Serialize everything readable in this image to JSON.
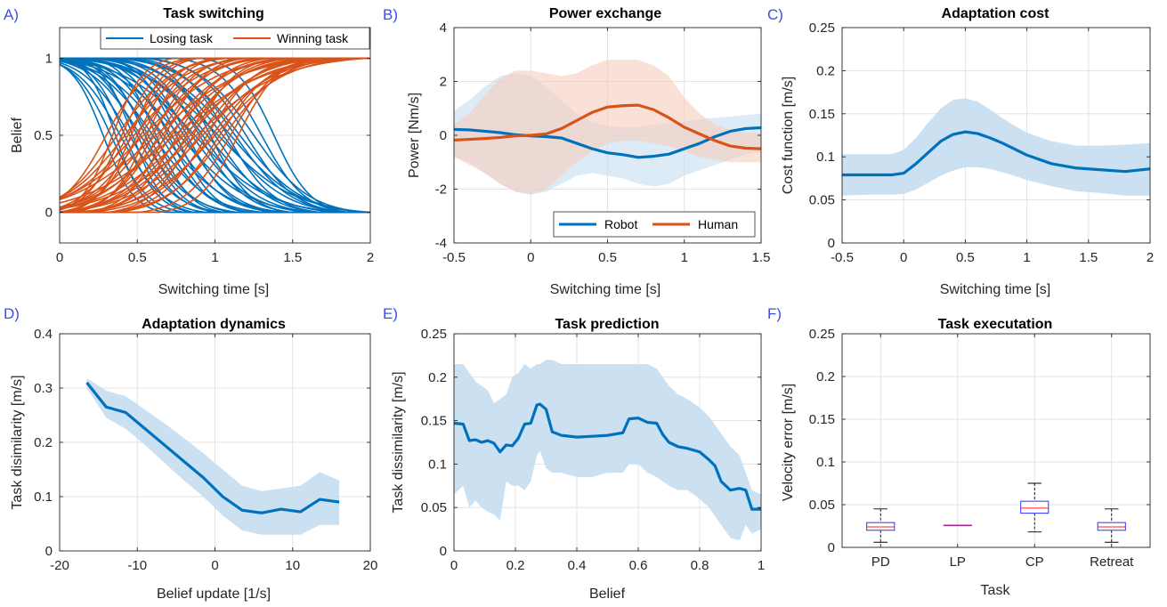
{
  "colors": {
    "blue": "#0072BD",
    "orange": "#D95319",
    "band_blue": "#c5ddf0",
    "band_orange": "#f6cdbd",
    "box_edge": "#3030ff",
    "median": "#ff2020",
    "label": "#3b4fe0"
  },
  "chart_data": [
    {
      "panel_label": "A)",
      "type": "line",
      "title": "Task switching",
      "xlabel": "Switching time [s]",
      "ylabel": "Belief",
      "xlim": [
        0,
        2
      ],
      "ylim": [
        -0.2,
        1.2
      ],
      "xticks": [
        0,
        0.5,
        1,
        1.5,
        2
      ],
      "xtick_labels": [
        "0",
        "0.5",
        "1",
        "1.5",
        "2"
      ],
      "yticks": [
        0,
        0.5,
        1
      ],
      "ytick_labels": [
        "0",
        "0.5",
        "1"
      ],
      "grid": true,
      "legend_position": "top-right",
      "series": [
        {
          "name": "Losing task",
          "color": "#0072BD",
          "kind": "sigmoid_down",
          "centers": [
            0.28,
            0.33,
            0.36,
            0.39,
            0.42,
            0.45,
            0.47,
            0.5,
            0.52,
            0.55,
            0.57,
            0.6,
            0.62,
            0.65,
            0.67,
            0.7,
            0.72,
            0.75,
            0.77,
            0.8,
            0.82,
            0.85,
            0.87,
            0.9,
            0.92,
            0.95,
            0.97,
            1.0,
            1.02,
            1.05,
            1.08,
            1.1,
            1.13,
            1.16,
            1.2,
            1.25,
            1.3,
            1.38
          ],
          "widths": [
            0.1,
            0.12,
            0.09,
            0.14,
            0.11,
            0.15,
            0.1,
            0.13,
            0.16,
            0.12,
            0.14,
            0.18,
            0.11,
            0.15,
            0.2,
            0.13,
            0.17,
            0.12,
            0.22,
            0.16,
            0.14,
            0.19,
            0.24,
            0.15,
            0.18,
            0.21,
            0.13,
            0.17,
            0.25,
            0.2,
            0.15,
            0.22,
            0.18,
            0.2,
            0.16,
            0.18,
            0.14,
            0.12
          ]
        },
        {
          "name": "Winning task",
          "color": "#D95319",
          "kind": "sigmoid_up",
          "centers": [
            0.3,
            0.34,
            0.37,
            0.4,
            0.42,
            0.44,
            0.46,
            0.48,
            0.5,
            0.52,
            0.54,
            0.56,
            0.58,
            0.6,
            0.62,
            0.64,
            0.66,
            0.68,
            0.7,
            0.72,
            0.74,
            0.76,
            0.78,
            0.8,
            0.82,
            0.84,
            0.86,
            0.88,
            0.9,
            0.92,
            0.95,
            0.98,
            1.0,
            1.03,
            1.06,
            1.1,
            1.15
          ],
          "widths": [
            0.14,
            0.1,
            0.18,
            0.12,
            0.2,
            0.15,
            0.11,
            0.22,
            0.13,
            0.17,
            0.25,
            0.12,
            0.19,
            0.14,
            0.28,
            0.16,
            0.21,
            0.13,
            0.24,
            0.18,
            0.3,
            0.15,
            0.2,
            0.26,
            0.17,
            0.22,
            0.14,
            0.28,
            0.19,
            0.24,
            0.16,
            0.2,
            0.23,
            0.17,
            0.19,
            0.15,
            0.13
          ]
        }
      ]
    },
    {
      "panel_label": "B)",
      "type": "area",
      "title": "Power exchange",
      "xlabel": "Switching time [s]",
      "ylabel": "Power [Nm/s]",
      "xlim": [
        -0.5,
        1.5
      ],
      "ylim": [
        -4,
        4
      ],
      "xticks": [
        -0.5,
        0,
        0.5,
        1,
        1.5
      ],
      "xtick_labels": [
        "-0.5",
        "0",
        "0.5",
        "1",
        "1.5"
      ],
      "yticks": [
        -4,
        -2,
        0,
        2,
        4
      ],
      "ytick_labels": [
        "-4",
        "-2",
        "0",
        "2",
        "4"
      ],
      "grid": true,
      "legend_position": "bottom-right",
      "series": [
        {
          "name": "Robot",
          "color": "#0072BD",
          "x": [
            -0.5,
            -0.4,
            -0.3,
            -0.2,
            -0.1,
            0.0,
            0.1,
            0.2,
            0.3,
            0.4,
            0.5,
            0.6,
            0.7,
            0.8,
            0.9,
            1.0,
            1.1,
            1.2,
            1.3,
            1.4,
            1.5
          ],
          "y": [
            0.22,
            0.2,
            0.15,
            0.1,
            0.02,
            -0.02,
            -0.05,
            -0.1,
            -0.3,
            -0.5,
            -0.65,
            -0.72,
            -0.82,
            -0.78,
            -0.7,
            -0.5,
            -0.3,
            -0.05,
            0.15,
            0.25,
            0.28
          ],
          "upper": [
            0.9,
            1.3,
            1.8,
            2.2,
            2.3,
            2.2,
            1.8,
            1.3,
            0.8,
            0.5,
            0.35,
            0.3,
            0.3,
            0.4,
            0.45,
            0.5,
            0.6,
            0.65,
            0.7,
            0.75,
            0.8
          ],
          "lower": [
            -0.8,
            -1.0,
            -1.4,
            -1.8,
            -2.1,
            -2.2,
            -2.1,
            -1.8,
            -1.5,
            -1.4,
            -1.5,
            -1.6,
            -1.8,
            -1.9,
            -1.8,
            -1.5,
            -1.3,
            -1.1,
            -0.9,
            -0.7,
            -0.6
          ]
        },
        {
          "name": "Human",
          "color": "#D95319",
          "x": [
            -0.5,
            -0.4,
            -0.3,
            -0.2,
            -0.1,
            0.0,
            0.1,
            0.2,
            0.3,
            0.4,
            0.5,
            0.6,
            0.7,
            0.8,
            0.9,
            1.0,
            1.1,
            1.2,
            1.3,
            1.4,
            1.5
          ],
          "y": [
            -0.18,
            -0.15,
            -0.12,
            -0.08,
            -0.02,
            0.0,
            0.05,
            0.25,
            0.55,
            0.85,
            1.05,
            1.1,
            1.12,
            0.95,
            0.65,
            0.3,
            0.05,
            -0.2,
            -0.4,
            -0.48,
            -0.5
          ],
          "upper": [
            0.4,
            0.8,
            1.5,
            2.1,
            2.4,
            2.4,
            2.3,
            2.2,
            2.3,
            2.6,
            2.8,
            2.8,
            2.8,
            2.6,
            2.2,
            1.4,
            0.8,
            0.4,
            0.2,
            0.1,
            0.1
          ],
          "lower": [
            -0.8,
            -1.1,
            -1.4,
            -1.8,
            -2.1,
            -2.2,
            -2.0,
            -1.5,
            -1.0,
            -0.6,
            -0.3,
            -0.2,
            -0.2,
            -0.3,
            -0.4,
            -0.6,
            -0.8,
            -0.9,
            -1.0,
            -1.0,
            -1.0
          ]
        }
      ]
    },
    {
      "panel_label": "C)",
      "type": "area",
      "title": "Adaptation cost",
      "xlabel": "Switching time [s]",
      "ylabel": "Cost function [m/s]",
      "xlim": [
        -0.5,
        2
      ],
      "ylim": [
        0,
        0.25
      ],
      "xticks": [
        -0.5,
        0,
        0.5,
        1,
        1.5,
        2
      ],
      "xtick_labels": [
        "-0.5",
        "0",
        "0.5",
        "1",
        "1.5",
        "2"
      ],
      "yticks": [
        0,
        0.05,
        0.1,
        0.15,
        0.2,
        0.25
      ],
      "ytick_labels": [
        "0",
        "0.05",
        "0.1",
        "0.15",
        "0.2",
        "0.25"
      ],
      "grid": true,
      "series": [
        {
          "color": "#0072BD",
          "x": [
            -0.5,
            -0.3,
            -0.1,
            0.0,
            0.1,
            0.2,
            0.3,
            0.4,
            0.5,
            0.6,
            0.7,
            0.8,
            0.9,
            1.0,
            1.2,
            1.4,
            1.6,
            1.8,
            2.0
          ],
          "y": [
            0.079,
            0.079,
            0.079,
            0.081,
            0.092,
            0.105,
            0.118,
            0.126,
            0.129,
            0.127,
            0.122,
            0.116,
            0.109,
            0.102,
            0.092,
            0.087,
            0.085,
            0.083,
            0.086
          ],
          "upper": [
            0.103,
            0.103,
            0.103,
            0.108,
            0.122,
            0.14,
            0.156,
            0.166,
            0.168,
            0.164,
            0.155,
            0.145,
            0.136,
            0.128,
            0.118,
            0.113,
            0.113,
            0.114,
            0.116
          ],
          "lower": [
            0.055,
            0.056,
            0.056,
            0.057,
            0.062,
            0.07,
            0.078,
            0.084,
            0.088,
            0.088,
            0.086,
            0.082,
            0.078,
            0.073,
            0.066,
            0.06,
            0.058,
            0.055,
            0.055
          ]
        }
      ]
    },
    {
      "panel_label": "D)",
      "type": "area",
      "title": "Adaptation dynamics",
      "xlabel": "Belief update [1/s]",
      "ylabel": "Task disimilarity [m/s]",
      "xlim": [
        -20,
        20
      ],
      "ylim": [
        0,
        0.4
      ],
      "xticks": [
        -20,
        -10,
        0,
        10,
        20
      ],
      "xtick_labels": [
        "-20",
        "-10",
        "0",
        "10",
        "20"
      ],
      "yticks": [
        0,
        0.1,
        0.2,
        0.3,
        0.4
      ],
      "ytick_labels": [
        "0",
        "0.1",
        "0.2",
        "0.3",
        "0.4"
      ],
      "grid": true,
      "series": [
        {
          "color": "#0072BD",
          "x": [
            -16.5,
            -14,
            -11.5,
            -9,
            -6.5,
            -4,
            -1.5,
            1,
            3.5,
            6,
            8.5,
            11,
            13.5,
            16
          ],
          "y": [
            0.31,
            0.265,
            0.255,
            0.225,
            0.195,
            0.165,
            0.135,
            0.1,
            0.075,
            0.07,
            0.077,
            0.072,
            0.095,
            0.09
          ],
          "upper": [
            0.318,
            0.295,
            0.285,
            0.26,
            0.235,
            0.208,
            0.18,
            0.15,
            0.12,
            0.11,
            0.115,
            0.12,
            0.145,
            0.13
          ],
          "lower": [
            0.3,
            0.245,
            0.225,
            0.195,
            0.162,
            0.13,
            0.1,
            0.065,
            0.038,
            0.03,
            0.03,
            0.03,
            0.048,
            0.048
          ]
        }
      ]
    },
    {
      "panel_label": "E)",
      "type": "area",
      "title": "Task prediction",
      "xlabel": "Belief",
      "ylabel": "Task dissimilarity [m/s]",
      "xlim": [
        0,
        1
      ],
      "ylim": [
        0,
        0.25
      ],
      "xticks": [
        0,
        0.2,
        0.4,
        0.6,
        0.8,
        1
      ],
      "xtick_labels": [
        "0",
        "0.2",
        "0.4",
        "0.6",
        "0.8",
        "1"
      ],
      "yticks": [
        0,
        0.05,
        0.1,
        0.15,
        0.2,
        0.25
      ],
      "ytick_labels": [
        "0",
        "0.05",
        "0.1",
        "0.15",
        "0.2",
        "0.25"
      ],
      "grid": true,
      "series": [
        {
          "color": "#0072BD",
          "x": [
            0,
            0.03,
            0.05,
            0.07,
            0.09,
            0.11,
            0.13,
            0.15,
            0.17,
            0.19,
            0.21,
            0.23,
            0.25,
            0.27,
            0.28,
            0.3,
            0.32,
            0.35,
            0.4,
            0.45,
            0.5,
            0.55,
            0.57,
            0.6,
            0.63,
            0.66,
            0.68,
            0.7,
            0.73,
            0.76,
            0.8,
            0.83,
            0.85,
            0.87,
            0.9,
            0.93,
            0.95,
            0.97,
            1.0
          ],
          "y": [
            0.147,
            0.146,
            0.127,
            0.128,
            0.125,
            0.127,
            0.124,
            0.114,
            0.122,
            0.121,
            0.13,
            0.146,
            0.147,
            0.168,
            0.169,
            0.163,
            0.137,
            0.133,
            0.131,
            0.132,
            0.133,
            0.136,
            0.152,
            0.153,
            0.148,
            0.147,
            0.134,
            0.125,
            0.12,
            0.118,
            0.114,
            0.105,
            0.098,
            0.08,
            0.07,
            0.072,
            0.07,
            0.048,
            0.048
          ],
          "upper": [
            0.215,
            0.215,
            0.205,
            0.195,
            0.19,
            0.185,
            0.17,
            0.175,
            0.18,
            0.2,
            0.205,
            0.215,
            0.21,
            0.215,
            0.215,
            0.22,
            0.22,
            0.215,
            0.215,
            0.215,
            0.215,
            0.215,
            0.215,
            0.215,
            0.215,
            0.21,
            0.2,
            0.19,
            0.18,
            0.175,
            0.165,
            0.155,
            0.145,
            0.135,
            0.12,
            0.11,
            0.09,
            0.07,
            0.065
          ],
          "lower": [
            0.065,
            0.075,
            0.05,
            0.058,
            0.05,
            0.045,
            0.042,
            0.035,
            0.08,
            0.075,
            0.075,
            0.07,
            0.08,
            0.11,
            0.115,
            0.095,
            0.09,
            0.09,
            0.085,
            0.085,
            0.09,
            0.09,
            0.1,
            0.1,
            0.09,
            0.085,
            0.08,
            0.075,
            0.07,
            0.07,
            0.06,
            0.05,
            0.04,
            0.03,
            0.015,
            0.012,
            0.03,
            0.02,
            0.025
          ]
        }
      ]
    },
    {
      "panel_label": "F)",
      "type": "box",
      "title": "Task executation",
      "xlabel": "Task",
      "ylabel": "Velocity error [m/s]",
      "ylim": [
        0,
        0.25
      ],
      "yticks": [
        0,
        0.05,
        0.1,
        0.15,
        0.2,
        0.25
      ],
      "ytick_labels": [
        "0",
        "0.05",
        "0.1",
        "0.15",
        "0.2",
        "0.25"
      ],
      "grid": true,
      "categories": [
        "PD",
        "LP",
        "CP",
        "Retreat"
      ],
      "boxes": [
        {
          "min": 0.006,
          "q1": 0.02,
          "median": 0.024,
          "q3": 0.029,
          "max": 0.045
        },
        {
          "min": 0.026,
          "q1": 0.026,
          "median": 0.026,
          "q3": 0.026,
          "max": 0.026
        },
        {
          "min": 0.018,
          "q1": 0.04,
          "median": 0.046,
          "q3": 0.054,
          "max": 0.075
        },
        {
          "min": 0.006,
          "q1": 0.02,
          "median": 0.024,
          "q3": 0.029,
          "max": 0.045
        }
      ]
    }
  ]
}
